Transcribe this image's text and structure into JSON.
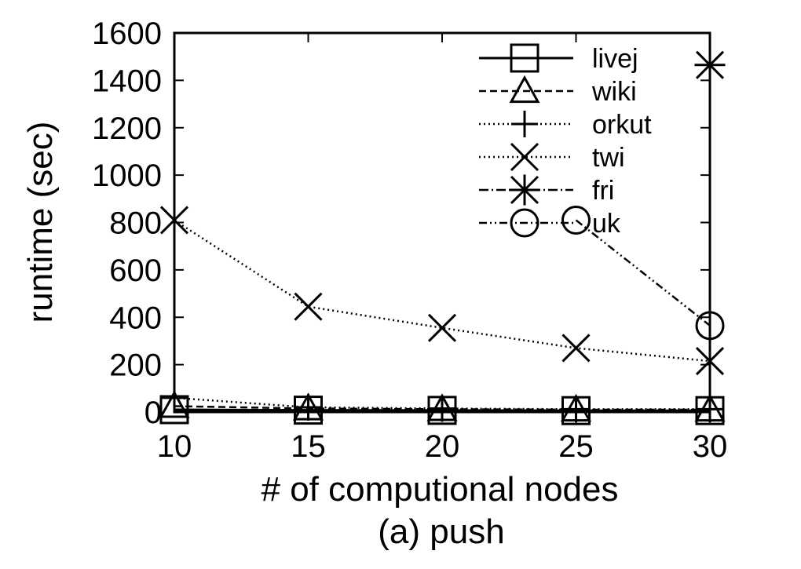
{
  "chart_data": {
    "type": "line",
    "title": "",
    "caption": "(a) push",
    "xlabel": "# of computional nodes",
    "ylabel": "runtime (sec)",
    "x": [
      10,
      15,
      20,
      25,
      30
    ],
    "xlim": [
      10,
      30
    ],
    "ylim": [
      0,
      1600
    ],
    "xticks": [
      "10",
      "15",
      "20",
      "25",
      "30"
    ],
    "yticks": [
      "0",
      "200",
      "400",
      "600",
      "800",
      "1000",
      "1200",
      "1400",
      "1600"
    ],
    "grid": false,
    "legend_position": "top-right",
    "series": [
      {
        "name": "livej",
        "marker": "square",
        "dash": "solid",
        "values": [
          10,
          8,
          7,
          6,
          6
        ]
      },
      {
        "name": "wiki",
        "marker": "triangle",
        "dash": "dashed",
        "values": [
          25,
          15,
          12,
          10,
          10
        ]
      },
      {
        "name": "orkut",
        "marker": "plus",
        "dash": "dotted",
        "values": [
          60,
          20,
          15,
          12,
          12
        ]
      },
      {
        "name": "twi",
        "marker": "cross",
        "dash": "dotted",
        "values": [
          810,
          445,
          355,
          270,
          215
        ]
      },
      {
        "name": "fri",
        "marker": "star",
        "dash": "dashdot",
        "values": [
          null,
          null,
          null,
          null,
          1465
        ]
      },
      {
        "name": "uk",
        "marker": "circle",
        "dash": "dashdotdot",
        "values": [
          null,
          null,
          null,
          810,
          365
        ]
      }
    ]
  }
}
